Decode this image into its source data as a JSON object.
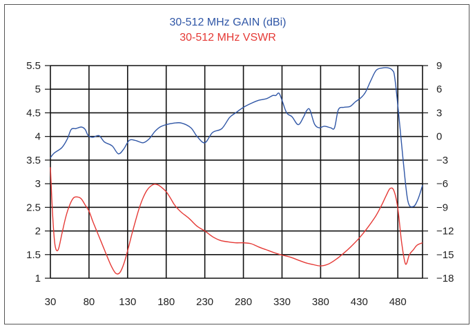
{
  "chart_data": {
    "type": "line",
    "title_gain": "30-512 MHz GAIN (dBi)",
    "title_vswr": "30-512 MHz VSWR",
    "colors": {
      "gain": "#2f56a6",
      "vswr": "#e53935",
      "grid": "#111111"
    },
    "grid": true,
    "x_ticks": [
      "30",
      "80",
      "130",
      "180",
      "230",
      "280",
      "330",
      "380",
      "430",
      "480"
    ],
    "xlim": [
      30,
      512
    ],
    "left_axis": {
      "ticks": [
        "5.5",
        "5",
        "4.5",
        "4",
        "3.5",
        "3",
        "2.5",
        "2",
        "1.5",
        "1"
      ],
      "ylim": [
        1,
        5.5
      ]
    },
    "right_axis": {
      "ticks": [
        "9",
        "6",
        "3",
        "0",
        "−3",
        "−6",
        "−9",
        "−12",
        "−15",
        "−18"
      ],
      "ylim": [
        -18,
        9
      ]
    },
    "series": [
      {
        "key": "gain",
        "axis": "right",
        "x": [
          30,
          35,
          45,
          52,
          57,
          63,
          70,
          75,
          79,
          85,
          93,
          100,
          110,
          118,
          125,
          132,
          140,
          150,
          158,
          165,
          172,
          180,
          190,
          200,
          212,
          220,
          230,
          240,
          252,
          262,
          270,
          280,
          290,
          300,
          310,
          318,
          322,
          326,
          330,
          336,
          343,
          351,
          358,
          362,
          366,
          372,
          378,
          385,
          393,
          398,
          403,
          410,
          418,
          425,
          432,
          438,
          445,
          452,
          460,
          468,
          473,
          476,
          481,
          487,
          493,
          500,
          506,
          512
        ],
        "y": [
          -2.7,
          -2.1,
          -1.4,
          -0.3,
          0.9,
          1.0,
          1.2,
          0.9,
          0.1,
          -0.1,
          0.1,
          -0.7,
          -1.2,
          -2.2,
          -1.6,
          -0.5,
          -0.5,
          -0.8,
          -0.3,
          0.6,
          1.2,
          1.5,
          1.7,
          1.7,
          1.1,
          0.0,
          -0.8,
          0.5,
          1.0,
          2.4,
          3.0,
          3.7,
          4.2,
          4.6,
          4.8,
          5.2,
          5.2,
          5.5,
          4.6,
          3.0,
          2.5,
          1.5,
          2.5,
          3.3,
          3.4,
          1.6,
          1.1,
          1.3,
          1.1,
          1.1,
          3.4,
          3.7,
          3.8,
          4.4,
          4.9,
          5.6,
          7.1,
          8.4,
          8.7,
          8.7,
          8.4,
          7.5,
          3.0,
          -3.1,
          -8.2,
          -8.9,
          -8.0,
          -6.2
        ]
      },
      {
        "key": "vswr",
        "axis": "left",
        "x": [
          30,
          33,
          36,
          40,
          45,
          50,
          55,
          60,
          65,
          70,
          75,
          80,
          85,
          90,
          95,
          100,
          105,
          110,
          115,
          120,
          125,
          130,
          135,
          140,
          145,
          150,
          155,
          160,
          165,
          170,
          175,
          180,
          185,
          190,
          195,
          200,
          210,
          220,
          230,
          240,
          250,
          260,
          270,
          280,
          290,
          300,
          310,
          320,
          330,
          340,
          350,
          360,
          370,
          380,
          390,
          400,
          410,
          420,
          430,
          440,
          450,
          455,
          460,
          465,
          470,
          475,
          480,
          485,
          490,
          495,
          500,
          505,
          512
        ],
        "y": [
          3.35,
          2.3,
          1.7,
          1.6,
          1.95,
          2.3,
          2.55,
          2.7,
          2.72,
          2.68,
          2.55,
          2.42,
          2.2,
          2.0,
          1.8,
          1.6,
          1.4,
          1.22,
          1.1,
          1.12,
          1.3,
          1.58,
          1.9,
          2.2,
          2.48,
          2.7,
          2.86,
          2.95,
          2.99,
          2.97,
          2.91,
          2.83,
          2.71,
          2.57,
          2.47,
          2.39,
          2.26,
          2.1,
          2.0,
          1.88,
          1.8,
          1.77,
          1.75,
          1.75,
          1.73,
          1.66,
          1.6,
          1.54,
          1.49,
          1.45,
          1.39,
          1.33,
          1.29,
          1.26,
          1.3,
          1.4,
          1.53,
          1.68,
          1.85,
          2.05,
          2.28,
          2.42,
          2.58,
          2.75,
          2.9,
          2.85,
          2.48,
          1.75,
          1.3,
          1.5,
          1.6,
          1.7,
          1.75
        ]
      }
    ]
  }
}
